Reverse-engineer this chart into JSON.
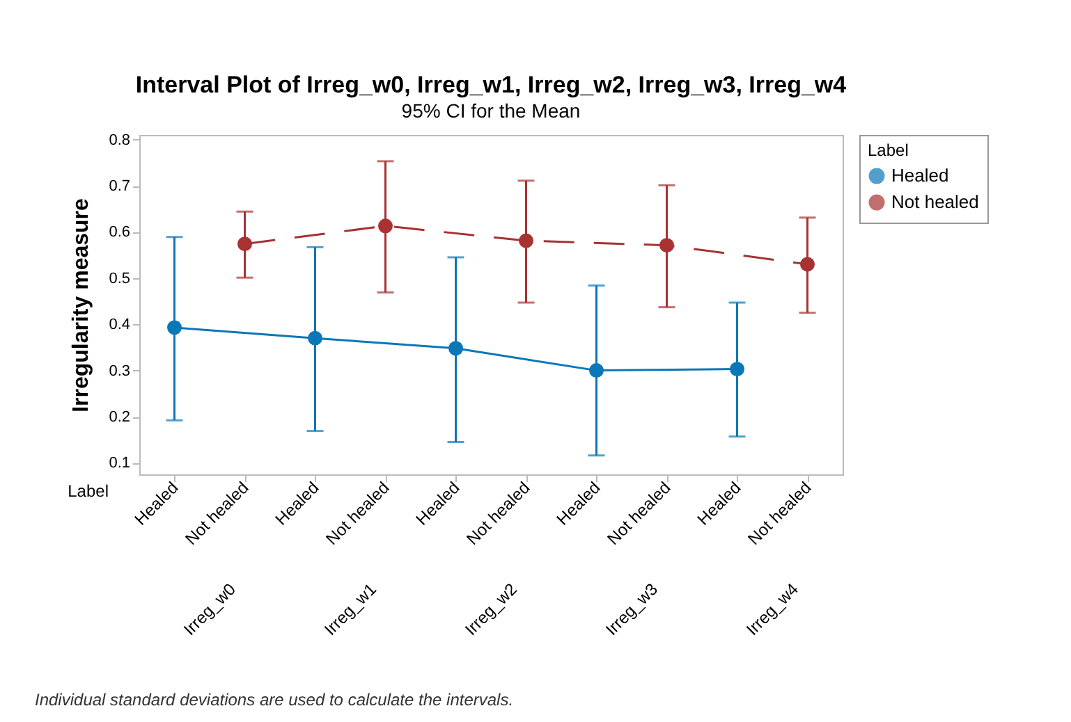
{
  "chart_data": {
    "type": "line",
    "title": "Interval Plot of Irreg_w0, Irreg_w1, Irreg_w2, Irreg_w3, Irreg_w4",
    "subtitle": "95% CI for the Mean",
    "ylabel": "Irregularity measure",
    "legend_title": "Label",
    "categories": [
      "Healed",
      "Not healed",
      "Healed",
      "Not healed",
      "Healed",
      "Not healed",
      "Healed",
      "Not healed",
      "Healed",
      "Not healed"
    ],
    "series": [
      {
        "name": "Healed",
        "color": "#0a77b8",
        "line_style": "solid",
        "values": [
          0.393,
          null,
          0.37,
          null,
          0.348,
          null,
          0.3,
          null,
          0.303,
          null
        ],
        "errors": [
          [
            0.192,
            0.589
          ],
          null,
          [
            0.169,
            0.567
          ],
          null,
          [
            0.145,
            0.545
          ],
          null,
          [
            0.116,
            0.484
          ],
          null,
          [
            0.157,
            0.447
          ],
          null
        ]
      },
      {
        "name": "Not healed",
        "color": "#a83232",
        "line_style": "dashed",
        "values": [
          null,
          0.574,
          null,
          0.613,
          null,
          0.581,
          null,
          0.571,
          null,
          0.53
        ],
        "errors": [
          null,
          [
            0.501,
            0.644
          ],
          null,
          [
            0.469,
            0.753
          ],
          null,
          [
            0.447,
            0.711
          ],
          null,
          [
            0.437,
            0.701
          ],
          null,
          [
            0.425,
            0.631
          ]
        ]
      }
    ],
    "ylim": [
      0.075,
      0.81
    ],
    "yticks": [
      0.1,
      0.2,
      0.3,
      0.4,
      0.5,
      0.6,
      0.7,
      0.8
    ],
    "grid": false,
    "legend": "top right",
    "marker": "circle",
    "annotations": [
      "Label",
      "Irreg_w0",
      "Irreg_w1",
      "Irreg_w2",
      "Irreg_w3",
      "Irreg_w4",
      "Individual standard deviations are used to calculate the intervals."
    ]
  }
}
